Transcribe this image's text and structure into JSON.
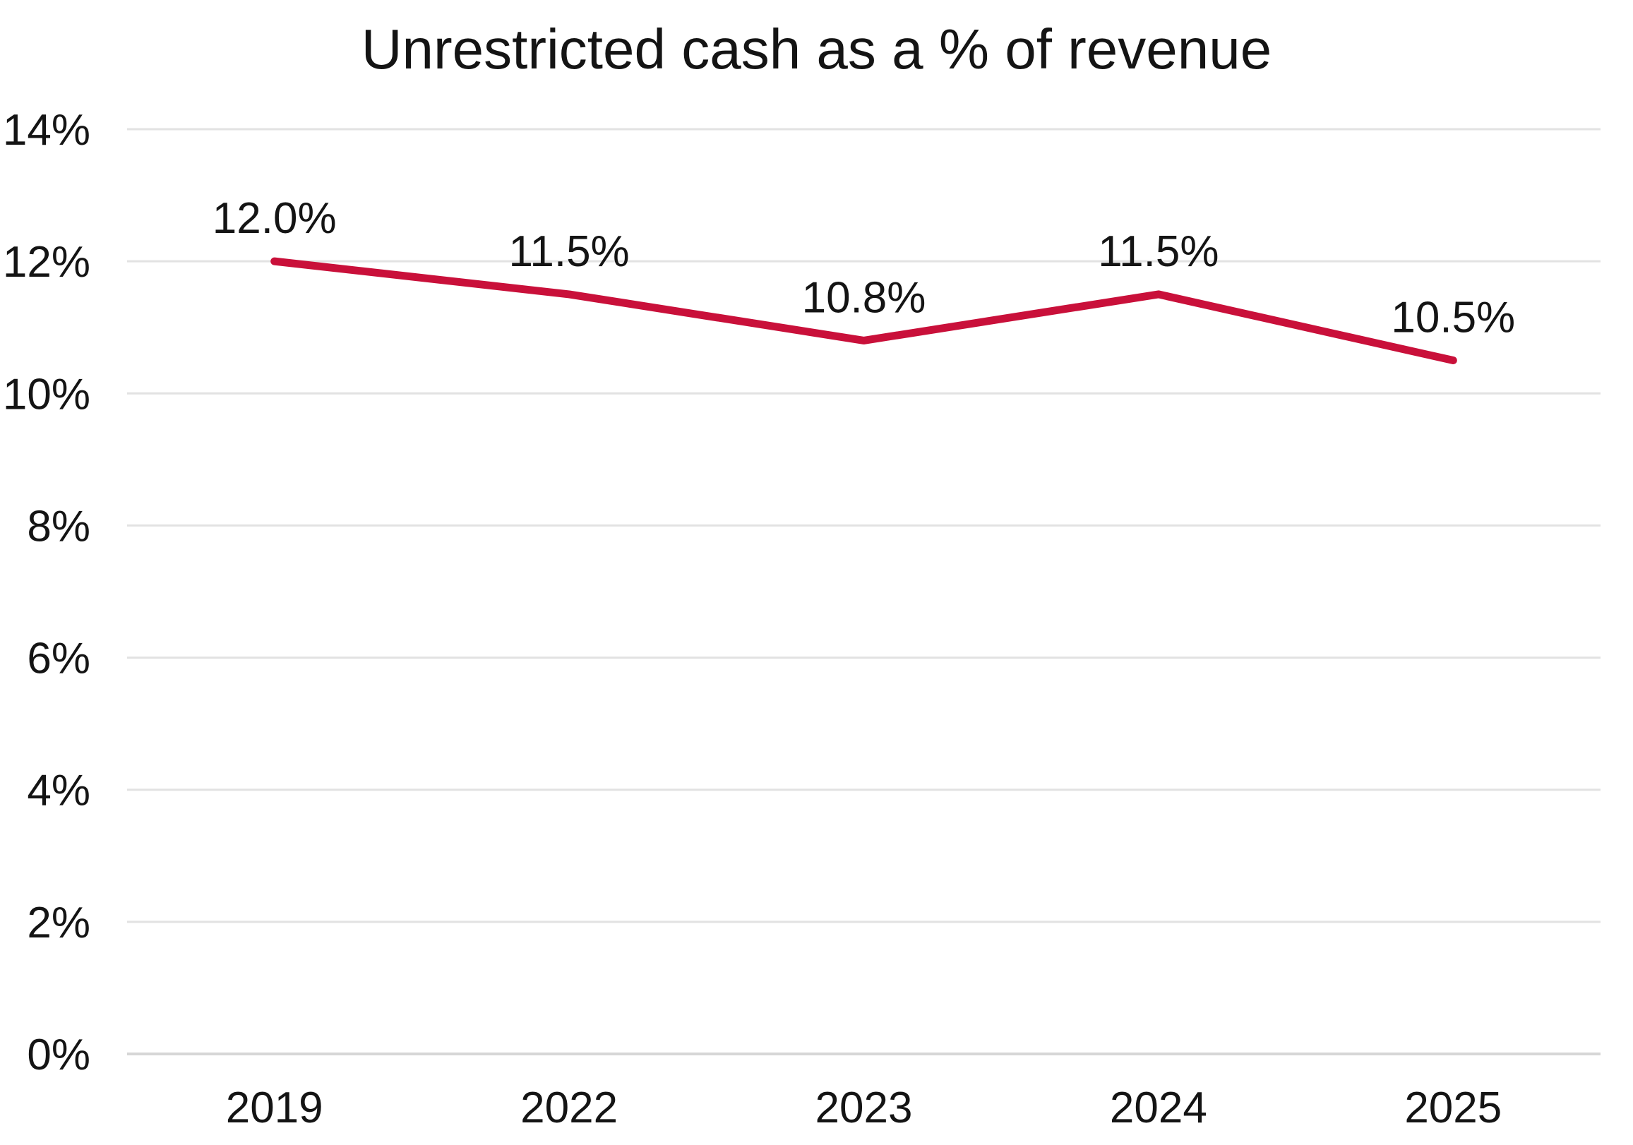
{
  "page": {
    "background": "#ffffff"
  },
  "chart_data": {
    "type": "line",
    "title": "Unrestricted cash as a % of revenue",
    "categories": [
      "2019",
      "2022",
      "2023",
      "2024",
      "2025"
    ],
    "series": [
      {
        "name": "Unrestricted cash as a % of revenue",
        "values": [
          12.0,
          11.5,
          10.8,
          11.5,
          10.5
        ],
        "point_labels": [
          "12.0%",
          "11.5%",
          "10.8%",
          "11.5%",
          "10.5%"
        ],
        "color": "#C9103A"
      }
    ],
    "xlabel": "",
    "ylabel": "",
    "ylim": [
      0,
      14
    ],
    "ytick_step": 2,
    "ytick_labels": [
      "0%",
      "2%",
      "4%",
      "6%",
      "8%",
      "10%",
      "12%",
      "14%"
    ],
    "grid": "horizontal-only",
    "legend_position": "none",
    "colors": {
      "line": "#C9103A",
      "gridline": "#E2E2E2",
      "baseline": "#D6D6D6",
      "tick_text": "#141414",
      "data_label_text": "#141414"
    }
  }
}
